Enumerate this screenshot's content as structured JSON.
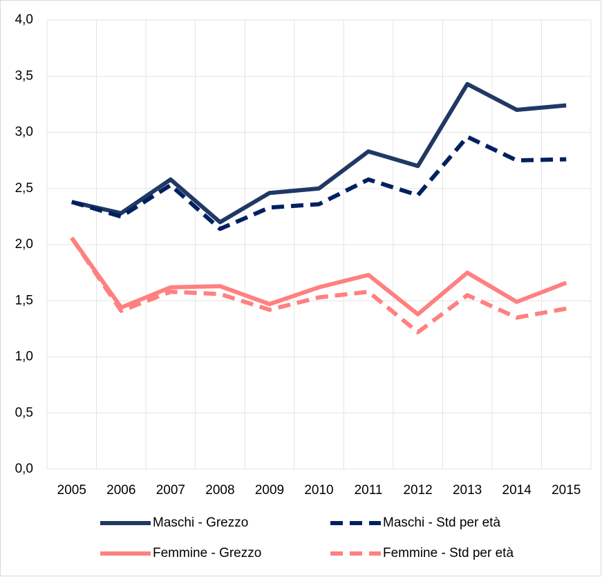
{
  "chart_data": {
    "type": "line",
    "categories": [
      "2005",
      "2006",
      "2007",
      "2008",
      "2009",
      "2010",
      "2011",
      "2012",
      "2013",
      "2014",
      "2015"
    ],
    "ylim": [
      0,
      4
    ],
    "yticks": [
      {
        "value": 0,
        "label": "0,0"
      },
      {
        "value": 0.5,
        "label": "0,5"
      },
      {
        "value": 1,
        "label": "1,0"
      },
      {
        "value": 1.5,
        "label": "1,5"
      },
      {
        "value": 2,
        "label": "2,0"
      },
      {
        "value": 2.5,
        "label": "2,5"
      },
      {
        "value": 3,
        "label": "3,0"
      },
      {
        "value": 3.5,
        "label": "3,5"
      },
      {
        "value": 4,
        "label": "4,0"
      }
    ],
    "grid": true,
    "series": [
      {
        "name": "Maschi - Grezzo",
        "color": "#203864",
        "dashed": false,
        "values": [
          2.38,
          2.28,
          2.58,
          2.2,
          2.46,
          2.5,
          2.83,
          2.7,
          3.43,
          3.2,
          3.24
        ]
      },
      {
        "name": "Maschi - Std per età",
        "color": "#002060",
        "dashed": true,
        "values": [
          2.38,
          2.25,
          2.53,
          2.14,
          2.33,
          2.36,
          2.58,
          2.44,
          2.96,
          2.75,
          2.76
        ]
      },
      {
        "name": "Femmine - Grezzo",
        "color": "#ff8080",
        "dashed": false,
        "values": [
          2.06,
          1.44,
          1.62,
          1.63,
          1.47,
          1.62,
          1.73,
          1.38,
          1.75,
          1.49,
          1.66
        ]
      },
      {
        "name": "Femmine - Std per età",
        "color": "#ff8080",
        "dashed": true,
        "values": [
          2.06,
          1.41,
          1.58,
          1.56,
          1.42,
          1.53,
          1.58,
          1.22,
          1.55,
          1.35,
          1.43
        ]
      }
    ]
  }
}
